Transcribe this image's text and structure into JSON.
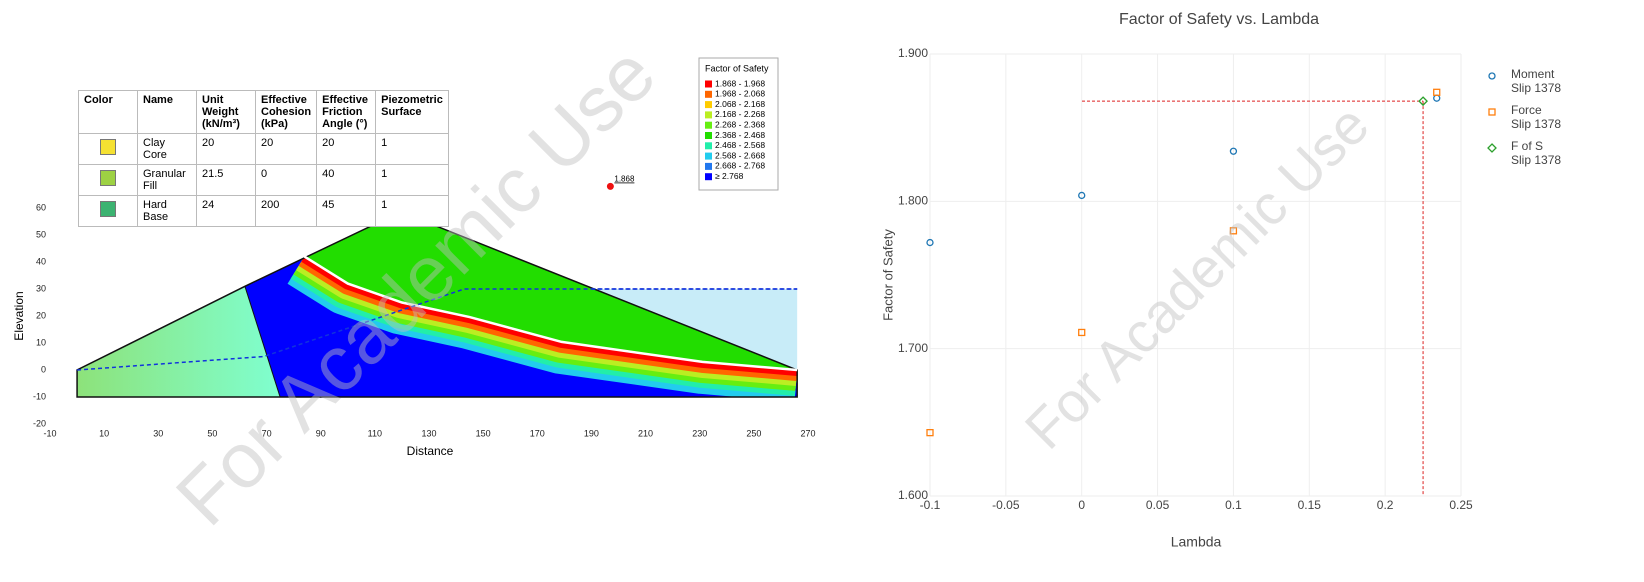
{
  "watermark": "For Academic Use",
  "chart_data": [
    {
      "type": "section",
      "xlabel": "Distance",
      "ylabel": "Elevation",
      "xlim": [
        -10,
        270
      ],
      "xticks": [
        -10,
        10,
        30,
        50,
        70,
        90,
        110,
        130,
        150,
        170,
        190,
        210,
        230,
        250,
        270
      ],
      "ylim": [
        -20,
        60
      ],
      "yticks": [
        -20,
        -10,
        0,
        10,
        20,
        30,
        40,
        50,
        60
      ],
      "surface": {
        "x": [
          0,
          0,
          62,
          110,
          131,
          266,
          266
        ],
        "y": [
          -10,
          0,
          31,
          54,
          54,
          0,
          -10
        ]
      },
      "core_boundary": {
        "x": [
          62,
          75
        ],
        "y": [
          31,
          -10
        ]
      },
      "slip_surface": {
        "x": [
          84,
          100,
          120,
          145,
          179,
          231,
          266
        ],
        "y": [
          42,
          32,
          25,
          19.6,
          10.4,
          3,
          0
        ]
      },
      "water_level": {
        "x": [
          190,
          266
        ],
        "y": [
          30,
          30
        ],
        "color": "#c8ecf8"
      },
      "piezometric_line": {
        "x": [
          0,
          69,
          143,
          266
        ],
        "y": [
          0,
          5,
          30,
          30
        ]
      },
      "critical_center": {
        "x": 197,
        "y": 68,
        "value": 1.868,
        "color": "#ee1111"
      },
      "materials": {
        "headers": [
          "Color",
          "Name",
          "Unit Weight (kN/m³)",
          "Effective Cohesion (kPa)",
          "Effective Friction Angle (°)",
          "Piezometric Surface"
        ],
        "rows": [
          {
            "color": "#f5e132",
            "name": "Clay Core",
            "unit_weight": 20,
            "cohesion": 20,
            "friction_angle": 20,
            "piezometric_surface": 1
          },
          {
            "color": "#9dd143",
            "name": "Granular Fill",
            "unit_weight": 21.5,
            "cohesion": 0,
            "friction_angle": 40,
            "piezometric_surface": 1
          },
          {
            "color": "#3cb371",
            "name": "Hard Base",
            "unit_weight": 24,
            "cohesion": 200,
            "friction_angle": 45,
            "piezometric_surface": 1
          }
        ]
      },
      "legend": {
        "title": "Factor of Safety",
        "items": [
          {
            "label": "1.868 - 1.968",
            "color": "#ff0000"
          },
          {
            "label": "1.968 - 2.068",
            "color": "#ff6600"
          },
          {
            "label": "2.068 - 2.168",
            "color": "#ffcc00"
          },
          {
            "label": "2.168 - 2.268",
            "color": "#bbee22"
          },
          {
            "label": "2.268 - 2.368",
            "color": "#66ee11"
          },
          {
            "label": "2.368 - 2.468",
            "color": "#22dd00"
          },
          {
            "label": "2.468 - 2.568",
            "color": "#22eeaa"
          },
          {
            "label": "2.568 - 2.668",
            "color": "#22ccee"
          },
          {
            "label": "2.668 - 2.768",
            "color": "#2277ee"
          },
          {
            "label": "≥ 2.768",
            "color": "#0000ff"
          }
        ]
      }
    },
    {
      "type": "scatter",
      "title": "Factor of Safety vs. Lambda",
      "xlabel": "Lambda",
      "ylabel": "Factor of Safety",
      "xlim": [
        -0.1,
        0.25
      ],
      "xticks": [
        -0.1,
        -0.05,
        0,
        0.05,
        0.1,
        0.15,
        0.2,
        0.25
      ],
      "ylim": [
        1.6,
        1.9
      ],
      "yticks": [
        {
          "value": 1.6,
          "label": "1.600"
        },
        {
          "value": 1.7,
          "label": "1.700"
        },
        {
          "value": 1.8,
          "label": "1.800"
        },
        {
          "value": 1.9,
          "label": "1.900"
        }
      ],
      "grid": true,
      "legend": "right",
      "series": [
        {
          "name": "Moment Slip 1378",
          "color": "#1f77b4",
          "marker": "circle",
          "x": [
            -0.1,
            0,
            0.1,
            0.234
          ],
          "values": [
            1.772,
            1.804,
            1.834,
            1.87
          ]
        },
        {
          "name": "Force Slip 1378",
          "color": "#ff7f0e",
          "marker": "square",
          "x": [
            -0.1,
            0,
            0.1,
            0.234
          ],
          "values": [
            1.643,
            1.711,
            1.78,
            1.874
          ]
        },
        {
          "name": "F of S Slip 1378",
          "color": "#2ca02c",
          "marker": "diamond",
          "x": [
            0.225
          ],
          "values": [
            1.868
          ],
          "crosshair": "#dd2222"
        }
      ]
    }
  ]
}
